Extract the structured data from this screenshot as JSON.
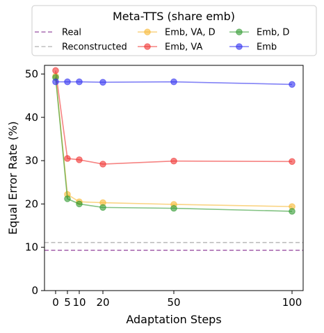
{
  "chart_data": {
    "type": "line",
    "xlabel": "Adaptation Steps",
    "ylabel": "Equal Error Rate (%)",
    "xticks": [
      0,
      5,
      10,
      20,
      50,
      100
    ],
    "yticks": [
      0,
      10,
      20,
      30,
      40,
      50
    ],
    "xlim": [
      -4.7,
      104.7
    ],
    "ylim": [
      0,
      52
    ],
    "grid": false,
    "legend": {
      "title": "Meta-TTS (share emb)",
      "placement": "above plot, 3 columns"
    },
    "x": [
      0,
      5,
      10,
      20,
      50,
      100
    ],
    "reference_lines": [
      {
        "name": "Real",
        "value": 9.3,
        "color": "#a05aa8",
        "style": "dashed"
      },
      {
        "name": "Reconstructed",
        "value": 11.1,
        "color": "#b4b4b4",
        "style": "dashed"
      }
    ],
    "series": [
      {
        "name": "Emb, VA, D",
        "color": "#f7b731",
        "values": [
          49.5,
          22.2,
          20.5,
          20.3,
          19.9,
          19.4
        ]
      },
      {
        "name": "Emb, VA",
        "color": "#f0312e",
        "values": [
          50.8,
          30.5,
          30.2,
          29.2,
          29.9,
          29.8
        ]
      },
      {
        "name": "Emb, D",
        "color": "#2e9a2e",
        "values": [
          49.2,
          21.2,
          20.0,
          19.2,
          19.0,
          18.3
        ]
      },
      {
        "name": "Emb",
        "color": "#2e2ef0",
        "values": [
          48.2,
          48.2,
          48.2,
          48.1,
          48.2,
          47.6
        ]
      }
    ],
    "legend_order": [
      "Real",
      "Reconstructed",
      "Emb, VA, D",
      "Emb, VA",
      "Emb, D",
      "Emb"
    ]
  }
}
